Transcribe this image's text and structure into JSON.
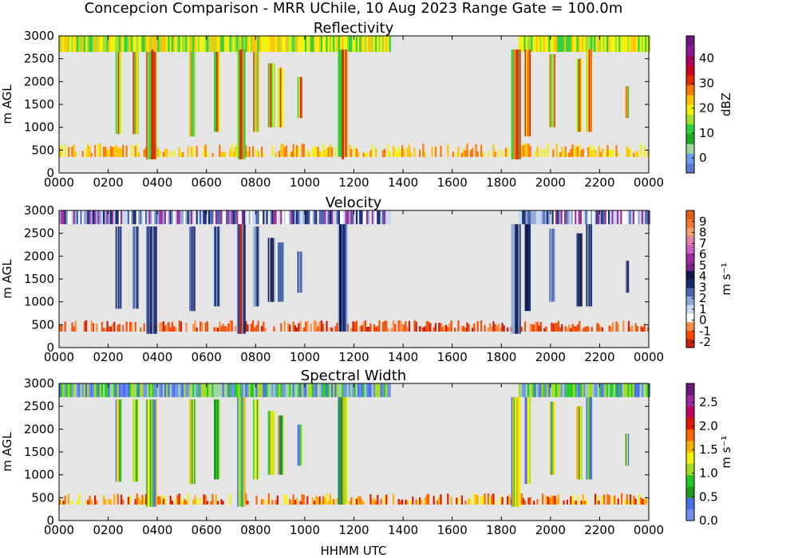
{
  "figure": {
    "title": "Concepcion Comparison - MRR UChile, 10 Aug 2023 Range Gate = 100.0m",
    "xlabel": "HHMM UTC",
    "ylabel": "m AGL"
  },
  "chart_data": [
    {
      "type": "heatmap",
      "title": "Reflectivity",
      "xlabel": "HHMM UTC",
      "ylabel": "m AGL",
      "x_ticks": [
        "0000",
        "0200",
        "0400",
        "0600",
        "0800",
        "1000",
        "1200",
        "1400",
        "1600",
        "1800",
        "2000",
        "2200",
        "0000"
      ],
      "x_range_hours": [
        0,
        24
      ],
      "y_ticks": [
        "0",
        "500",
        "1000",
        "1500",
        "2000",
        "2500",
        "3000"
      ],
      "y_range": [
        0,
        3000
      ],
      "colorbar": {
        "label": "dBZ",
        "range": [
          -6,
          49
        ],
        "ticks": [
          "0",
          "10",
          "20",
          "30",
          "40"
        ],
        "tick_values": [
          0,
          10,
          20,
          30,
          40
        ]
      },
      "background": "#e5e5e5",
      "features": [
        {
          "name": "cloud layer",
          "x_hours": [
            0.0,
            13.5
          ],
          "y_m": [
            2650,
            3000
          ],
          "value": 17
        },
        {
          "name": "cloud layer",
          "x_hours": [
            18.7,
            24.0
          ],
          "y_m": [
            2650,
            3000
          ],
          "value": 17
        },
        {
          "name": "low echo layer",
          "x_hours": [
            0.0,
            24.0
          ],
          "y_m": [
            350,
            650
          ],
          "value": 22
        },
        {
          "name": "shower",
          "x_hours": [
            3.7,
            3.9
          ],
          "y_m": [
            300,
            2700
          ],
          "value": 30
        },
        {
          "name": "shower",
          "x_hours": [
            7.3,
            7.5
          ],
          "y_m": [
            300,
            2700
          ],
          "value": 35
        },
        {
          "name": "shower",
          "x_hours": [
            11.4,
            11.7
          ],
          "y_m": [
            300,
            2700
          ],
          "value": 28
        },
        {
          "name": "shower",
          "x_hours": [
            18.5,
            18.8
          ],
          "y_m": [
            300,
            2700
          ],
          "value": 25
        }
      ]
    },
    {
      "type": "heatmap",
      "title": "Velocity",
      "xlabel": "HHMM UTC",
      "ylabel": "m AGL",
      "x_ticks": [
        "0000",
        "0200",
        "0400",
        "0600",
        "0800",
        "1000",
        "1200",
        "1400",
        "1600",
        "1800",
        "2000",
        "2200",
        "0000"
      ],
      "x_range_hours": [
        0,
        24
      ],
      "y_ticks": [
        "0",
        "500",
        "1000",
        "1500",
        "2000",
        "2500",
        "3000"
      ],
      "y_range": [
        0,
        3000
      ],
      "colorbar": {
        "label": "m s⁻¹",
        "range": [
          -2.5,
          10
        ],
        "ticks": [
          "9",
          "8",
          "7",
          "6",
          "5",
          "4",
          "3",
          "2",
          "1",
          "0",
          "-1",
          "-2"
        ],
        "tick_values": [
          9,
          8,
          7,
          6,
          5,
          4,
          3,
          2,
          1,
          0,
          -1,
          -2
        ]
      },
      "background": "#e5e5e5",
      "features": [
        {
          "name": "cloud layer",
          "x_hours": [
            0.0,
            13.5
          ],
          "y_m": [
            2700,
            3000
          ],
          "value": 1.5
        },
        {
          "name": "cloud layer",
          "x_hours": [
            18.7,
            24.0
          ],
          "y_m": [
            2700,
            3000
          ],
          "value": 2.5
        },
        {
          "name": "low echo layer",
          "x_hours": [
            0.0,
            24.0
          ],
          "y_m": [
            350,
            600
          ],
          "value": -1
        },
        {
          "name": "shower",
          "x_hours": [
            7.3,
            7.5
          ],
          "y_m": [
            300,
            2700
          ],
          "value": -1.5
        }
      ]
    },
    {
      "type": "heatmap",
      "title": "Spectral Width",
      "xlabel": "HHMM UTC",
      "ylabel": "m AGL",
      "x_ticks": [
        "0000",
        "0200",
        "0400",
        "0600",
        "0800",
        "1000",
        "1200",
        "1400",
        "1600",
        "1800",
        "2000",
        "2200",
        "0000"
      ],
      "x_range_hours": [
        0,
        24
      ],
      "y_ticks": [
        "0",
        "500",
        "1000",
        "1500",
        "2000",
        "2500",
        "3000"
      ],
      "y_range": [
        0,
        3000
      ],
      "colorbar": {
        "label": "m s⁻¹",
        "range": [
          0,
          2.9
        ],
        "ticks": [
          "0.0",
          "0.5",
          "1.0",
          "1.5",
          "2.0",
          "2.5"
        ],
        "tick_values": [
          0.0,
          0.5,
          1.0,
          1.5,
          2.0,
          2.5
        ]
      },
      "background": "#e5e5e5",
      "features": [
        {
          "name": "cloud layer",
          "x_hours": [
            0.0,
            13.5
          ],
          "y_m": [
            2700,
            3000
          ],
          "value": 0.7
        },
        {
          "name": "cloud layer",
          "x_hours": [
            18.7,
            24.0
          ],
          "y_m": [
            2700,
            3000
          ],
          "value": 0.7
        },
        {
          "name": "low echo layer",
          "x_hours": [
            0.0,
            24.0
          ],
          "y_m": [
            350,
            600
          ],
          "value": 1.5
        }
      ]
    }
  ],
  "colors": {
    "plot_background": "#e5e5e5",
    "dbz_scale": [
      "#5b7bd6",
      "#6b9ef0",
      "#9fd6a0",
      "#1faa22",
      "#2bd23a",
      "#a0e02a",
      "#f2f20a",
      "#ffc400",
      "#ff7a00",
      "#e02a00",
      "#c8001e",
      "#b0005e",
      "#8a1a9a",
      "#6a1a7a"
    ],
    "vel_scale": [
      "#c8200e",
      "#ff4500",
      "#ff8c40",
      "#ffffff",
      "#c8d8f0",
      "#8fa8d8",
      "#4a66b0",
      "#1a2a70",
      "#101a4a",
      "#7a2a8a",
      "#a02aa0",
      "#c860c0",
      "#e080b0",
      "#f0a070",
      "#f07830",
      "#e85a10"
    ],
    "sw_scale": [
      "#6e8ff0",
      "#4a6cf0",
      "#1c9a1c",
      "#22cc22",
      "#a6dc20",
      "#f2f20a",
      "#ffb000",
      "#ff6600",
      "#e01a00",
      "#c0005a",
      "#9a2a9a",
      "#6a1a7a"
    ]
  }
}
